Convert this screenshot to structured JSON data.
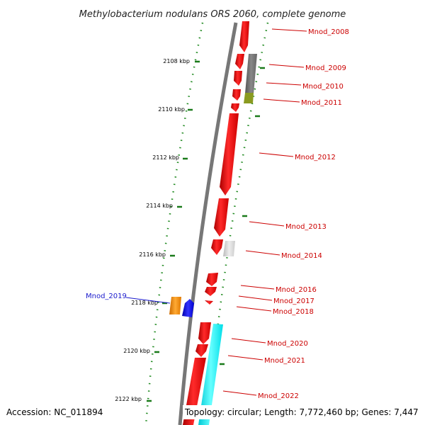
{
  "title": "Methylobacterium nodulans ORS 2060, complete genome",
  "footer": {
    "accession": "Accession: NC_011894",
    "topology": "Topology: circular; Length: 7,772,460 bp; Genes: 7,447"
  },
  "scale_ticks": [
    "2108 kbp",
    "2110 kbp",
    "2112 kbp",
    "2114 kbp",
    "2116 kbp",
    "2118 kbp",
    "2120 kbp",
    "2122 kbp"
  ],
  "genes": [
    {
      "label": "Mnod_2008",
      "color": "#cc0000"
    },
    {
      "label": "Mnod_2009",
      "color": "#cc0000"
    },
    {
      "label": "Mnod_2010",
      "color": "#cc0000"
    },
    {
      "label": "Mnod_2011",
      "color": "#cc0000"
    },
    {
      "label": "Mnod_2012",
      "color": "#cc0000"
    },
    {
      "label": "Mnod_2013",
      "color": "#cc0000"
    },
    {
      "label": "Mnod_2014",
      "color": "#cc0000"
    },
    {
      "label": "Mnod_2016",
      "color": "#cc0000"
    },
    {
      "label": "Mnod_2017",
      "color": "#cc0000"
    },
    {
      "label": "Mnod_2018",
      "color": "#cc0000"
    },
    {
      "label": "Mnod_2019",
      "color": "#1a1acc"
    },
    {
      "label": "Mnod_2020",
      "color": "#cc0000"
    },
    {
      "label": "Mnod_2021",
      "color": "#cc0000"
    },
    {
      "label": "Mnod_2022",
      "color": "#cc0000"
    }
  ],
  "colors": {
    "forward_strand": "#ff0000",
    "feature_gray": "#777777",
    "feature_light_gray": "#cccccc",
    "feature_olive": "#8a9a20",
    "feature_orange": "#ff8c00",
    "feature_blue": "#0000dd",
    "feature_cyan": "#00e5ee",
    "backbone": "#777777",
    "dotted_track": "#228b22"
  }
}
